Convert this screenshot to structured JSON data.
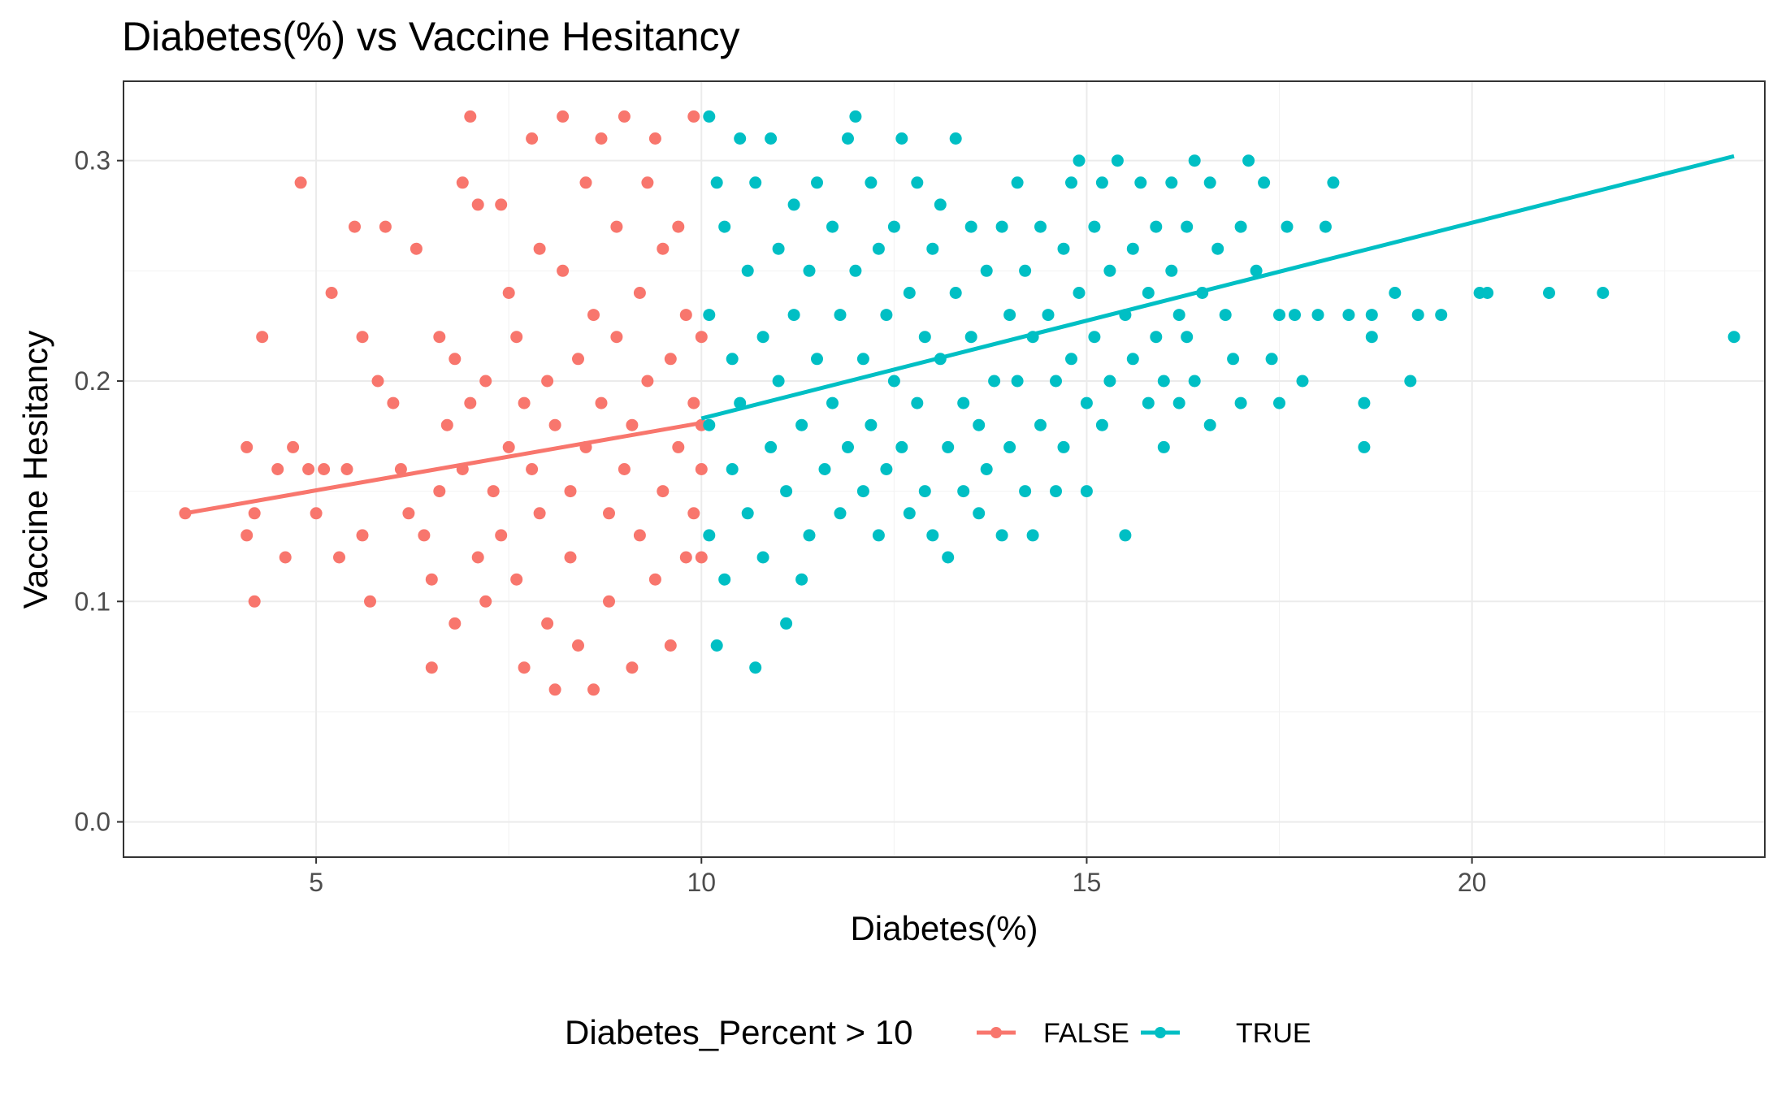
{
  "chart_data": {
    "type": "scatter",
    "title": "Diabetes(%) vs Vaccine Hesitancy",
    "xlabel": "Diabetes(%)",
    "ylabel": "Vaccine Hesitancy",
    "xlim": [
      2.5,
      23.8
    ],
    "ylim": [
      -0.016,
      0.336
    ],
    "x_ticks": [
      5,
      10,
      15,
      20
    ],
    "x_tick_labels": [
      "5",
      "10",
      "15",
      "20"
    ],
    "y_ticks": [
      0.0,
      0.1,
      0.2,
      0.3
    ],
    "y_tick_labels": [
      "0.0",
      "0.1",
      "0.2",
      "0.3"
    ],
    "grid": true,
    "legend": {
      "title": "Diabetes_Percent > 10",
      "position": "bottom",
      "entries": [
        "FALSE",
        "TRUE"
      ]
    },
    "series": [
      {
        "name": "FALSE",
        "color": "#F8766D",
        "trend": [
          [
            3.3,
            0.14
          ],
          [
            10.0,
            0.181
          ]
        ],
        "points": [
          [
            3.3,
            0.14
          ],
          [
            4.1,
            0.17
          ],
          [
            4.1,
            0.13
          ],
          [
            4.2,
            0.14
          ],
          [
            4.2,
            0.1
          ],
          [
            4.3,
            0.22
          ],
          [
            4.5,
            0.16
          ],
          [
            4.6,
            0.12
          ],
          [
            4.7,
            0.17
          ],
          [
            4.8,
            0.29
          ],
          [
            4.9,
            0.16
          ],
          [
            5.0,
            0.14
          ],
          [
            5.1,
            0.16
          ],
          [
            5.2,
            0.24
          ],
          [
            5.3,
            0.12
          ],
          [
            5.4,
            0.16
          ],
          [
            5.5,
            0.27
          ],
          [
            5.6,
            0.22
          ],
          [
            5.6,
            0.13
          ],
          [
            5.7,
            0.1
          ],
          [
            5.8,
            0.2
          ],
          [
            5.9,
            0.27
          ],
          [
            6.0,
            0.19
          ],
          [
            6.1,
            0.16
          ],
          [
            6.2,
            0.14
          ],
          [
            6.3,
            0.26
          ],
          [
            6.4,
            0.13
          ],
          [
            6.5,
            0.11
          ],
          [
            6.5,
            0.07
          ],
          [
            6.6,
            0.22
          ],
          [
            6.6,
            0.15
          ],
          [
            6.7,
            0.18
          ],
          [
            6.8,
            0.21
          ],
          [
            6.8,
            0.09
          ],
          [
            6.9,
            0.29
          ],
          [
            6.9,
            0.16
          ],
          [
            7.0,
            0.32
          ],
          [
            7.0,
            0.19
          ],
          [
            7.1,
            0.28
          ],
          [
            7.1,
            0.12
          ],
          [
            7.2,
            0.2
          ],
          [
            7.2,
            0.1
          ],
          [
            7.3,
            0.15
          ],
          [
            7.4,
            0.28
          ],
          [
            7.4,
            0.13
          ],
          [
            7.5,
            0.24
          ],
          [
            7.5,
            0.17
          ],
          [
            7.6,
            0.22
          ],
          [
            7.6,
            0.11
          ],
          [
            7.7,
            0.19
          ],
          [
            7.7,
            0.07
          ],
          [
            7.8,
            0.31
          ],
          [
            7.8,
            0.16
          ],
          [
            7.9,
            0.26
          ],
          [
            7.9,
            0.14
          ],
          [
            8.0,
            0.2
          ],
          [
            8.0,
            0.09
          ],
          [
            8.1,
            0.18
          ],
          [
            8.1,
            0.06
          ],
          [
            8.2,
            0.32
          ],
          [
            8.2,
            0.25
          ],
          [
            8.3,
            0.15
          ],
          [
            8.3,
            0.12
          ],
          [
            8.4,
            0.21
          ],
          [
            8.4,
            0.08
          ],
          [
            8.5,
            0.29
          ],
          [
            8.5,
            0.17
          ],
          [
            8.6,
            0.23
          ],
          [
            8.6,
            0.06
          ],
          [
            8.7,
            0.31
          ],
          [
            8.7,
            0.19
          ],
          [
            8.8,
            0.14
          ],
          [
            8.8,
            0.1
          ],
          [
            8.9,
            0.27
          ],
          [
            8.9,
            0.22
          ],
          [
            9.0,
            0.32
          ],
          [
            9.0,
            0.16
          ],
          [
            9.1,
            0.18
          ],
          [
            9.1,
            0.07
          ],
          [
            9.2,
            0.24
          ],
          [
            9.2,
            0.13
          ],
          [
            9.3,
            0.29
          ],
          [
            9.3,
            0.2
          ],
          [
            9.4,
            0.31
          ],
          [
            9.4,
            0.11
          ],
          [
            9.5,
            0.26
          ],
          [
            9.5,
            0.15
          ],
          [
            9.6,
            0.21
          ],
          [
            9.6,
            0.08
          ],
          [
            9.7,
            0.27
          ],
          [
            9.7,
            0.17
          ],
          [
            9.8,
            0.23
          ],
          [
            9.8,
            0.12
          ],
          [
            9.9,
            0.32
          ],
          [
            9.9,
            0.19
          ],
          [
            9.9,
            0.14
          ],
          [
            10.0,
            0.22
          ],
          [
            10.0,
            0.18
          ],
          [
            10.0,
            0.16
          ],
          [
            10.0,
            0.12
          ]
        ]
      },
      {
        "name": "TRUE",
        "color": "#00BFC4",
        "trend": [
          [
            10.0,
            0.183
          ],
          [
            23.4,
            0.302
          ]
        ],
        "points": [
          [
            10.1,
            0.32
          ],
          [
            10.1,
            0.23
          ],
          [
            10.1,
            0.18
          ],
          [
            10.1,
            0.13
          ],
          [
            10.2,
            0.29
          ],
          [
            10.2,
            0.08
          ],
          [
            10.3,
            0.27
          ],
          [
            10.3,
            0.11
          ],
          [
            10.4,
            0.21
          ],
          [
            10.4,
            0.16
          ],
          [
            10.5,
            0.31
          ],
          [
            10.5,
            0.19
          ],
          [
            10.6,
            0.25
          ],
          [
            10.6,
            0.14
          ],
          [
            10.7,
            0.29
          ],
          [
            10.7,
            0.07
          ],
          [
            10.8,
            0.22
          ],
          [
            10.8,
            0.12
          ],
          [
            10.9,
            0.31
          ],
          [
            10.9,
            0.17
          ],
          [
            11.0,
            0.26
          ],
          [
            11.0,
            0.2
          ],
          [
            11.1,
            0.15
          ],
          [
            11.1,
            0.09
          ],
          [
            11.2,
            0.28
          ],
          [
            11.2,
            0.23
          ],
          [
            11.3,
            0.18
          ],
          [
            11.3,
            0.11
          ],
          [
            11.4,
            0.25
          ],
          [
            11.4,
            0.13
          ],
          [
            11.5,
            0.29
          ],
          [
            11.5,
            0.21
          ],
          [
            11.6,
            0.16
          ],
          [
            11.7,
            0.27
          ],
          [
            11.7,
            0.19
          ],
          [
            11.8,
            0.23
          ],
          [
            11.8,
            0.14
          ],
          [
            11.9,
            0.31
          ],
          [
            11.9,
            0.17
          ],
          [
            12.0,
            0.32
          ],
          [
            12.0,
            0.25
          ],
          [
            12.1,
            0.21
          ],
          [
            12.1,
            0.15
          ],
          [
            12.2,
            0.29
          ],
          [
            12.2,
            0.18
          ],
          [
            12.3,
            0.26
          ],
          [
            12.3,
            0.13
          ],
          [
            12.4,
            0.23
          ],
          [
            12.4,
            0.16
          ],
          [
            12.5,
            0.27
          ],
          [
            12.5,
            0.2
          ],
          [
            12.6,
            0.31
          ],
          [
            12.6,
            0.17
          ],
          [
            12.7,
            0.24
          ],
          [
            12.7,
            0.14
          ],
          [
            12.8,
            0.29
          ],
          [
            12.8,
            0.19
          ],
          [
            12.9,
            0.22
          ],
          [
            12.9,
            0.15
          ],
          [
            13.0,
            0.26
          ],
          [
            13.0,
            0.13
          ],
          [
            13.1,
            0.28
          ],
          [
            13.1,
            0.21
          ],
          [
            13.2,
            0.17
          ],
          [
            13.2,
            0.12
          ],
          [
            13.3,
            0.31
          ],
          [
            13.3,
            0.24
          ],
          [
            13.4,
            0.19
          ],
          [
            13.4,
            0.15
          ],
          [
            13.5,
            0.27
          ],
          [
            13.5,
            0.22
          ],
          [
            13.6,
            0.18
          ],
          [
            13.6,
            0.14
          ],
          [
            13.7,
            0.25
          ],
          [
            13.7,
            0.16
          ],
          [
            13.8,
            0.2
          ],
          [
            13.9,
            0.27
          ],
          [
            13.9,
            0.13
          ],
          [
            14.0,
            0.23
          ],
          [
            14.0,
            0.17
          ],
          [
            14.1,
            0.29
          ],
          [
            14.1,
            0.2
          ],
          [
            14.2,
            0.25
          ],
          [
            14.2,
            0.15
          ],
          [
            14.3,
            0.22
          ],
          [
            14.3,
            0.13
          ],
          [
            14.4,
            0.27
          ],
          [
            14.4,
            0.18
          ],
          [
            14.5,
            0.23
          ],
          [
            14.6,
            0.2
          ],
          [
            14.6,
            0.15
          ],
          [
            14.7,
            0.26
          ],
          [
            14.7,
            0.17
          ],
          [
            14.8,
            0.29
          ],
          [
            14.8,
            0.21
          ],
          [
            14.9,
            0.3
          ],
          [
            14.9,
            0.24
          ],
          [
            15.0,
            0.19
          ],
          [
            15.0,
            0.15
          ],
          [
            15.1,
            0.27
          ],
          [
            15.1,
            0.22
          ],
          [
            15.2,
            0.29
          ],
          [
            15.2,
            0.18
          ],
          [
            15.3,
            0.25
          ],
          [
            15.3,
            0.2
          ],
          [
            15.4,
            0.3
          ],
          [
            15.5,
            0.23
          ],
          [
            15.5,
            0.13
          ],
          [
            15.6,
            0.26
          ],
          [
            15.6,
            0.21
          ],
          [
            15.7,
            0.29
          ],
          [
            15.8,
            0.24
          ],
          [
            15.8,
            0.19
          ],
          [
            15.9,
            0.27
          ],
          [
            15.9,
            0.22
          ],
          [
            16.0,
            0.2
          ],
          [
            16.0,
            0.17
          ],
          [
            16.1,
            0.29
          ],
          [
            16.1,
            0.25
          ],
          [
            16.2,
            0.23
          ],
          [
            16.2,
            0.19
          ],
          [
            16.3,
            0.27
          ],
          [
            16.3,
            0.22
          ],
          [
            16.4,
            0.3
          ],
          [
            16.4,
            0.2
          ],
          [
            16.5,
            0.24
          ],
          [
            16.6,
            0.29
          ],
          [
            16.6,
            0.18
          ],
          [
            16.7,
            0.26
          ],
          [
            16.8,
            0.23
          ],
          [
            16.9,
            0.21
          ],
          [
            17.0,
            0.27
          ],
          [
            17.0,
            0.19
          ],
          [
            17.1,
            0.3
          ],
          [
            17.2,
            0.25
          ],
          [
            17.3,
            0.29
          ],
          [
            17.4,
            0.21
          ],
          [
            17.5,
            0.23
          ],
          [
            17.5,
            0.19
          ],
          [
            17.6,
            0.27
          ],
          [
            17.7,
            0.23
          ],
          [
            17.8,
            0.2
          ],
          [
            18.0,
            0.23
          ],
          [
            18.1,
            0.27
          ],
          [
            18.2,
            0.29
          ],
          [
            18.4,
            0.23
          ],
          [
            18.6,
            0.19
          ],
          [
            18.6,
            0.17
          ],
          [
            18.7,
            0.23
          ],
          [
            18.7,
            0.22
          ],
          [
            19.0,
            0.24
          ],
          [
            19.2,
            0.2
          ],
          [
            19.3,
            0.23
          ],
          [
            19.6,
            0.23
          ],
          [
            20.1,
            0.24
          ],
          [
            20.2,
            0.24
          ],
          [
            21.0,
            0.24
          ],
          [
            21.7,
            0.24
          ],
          [
            23.4,
            0.22
          ]
        ]
      }
    ]
  }
}
